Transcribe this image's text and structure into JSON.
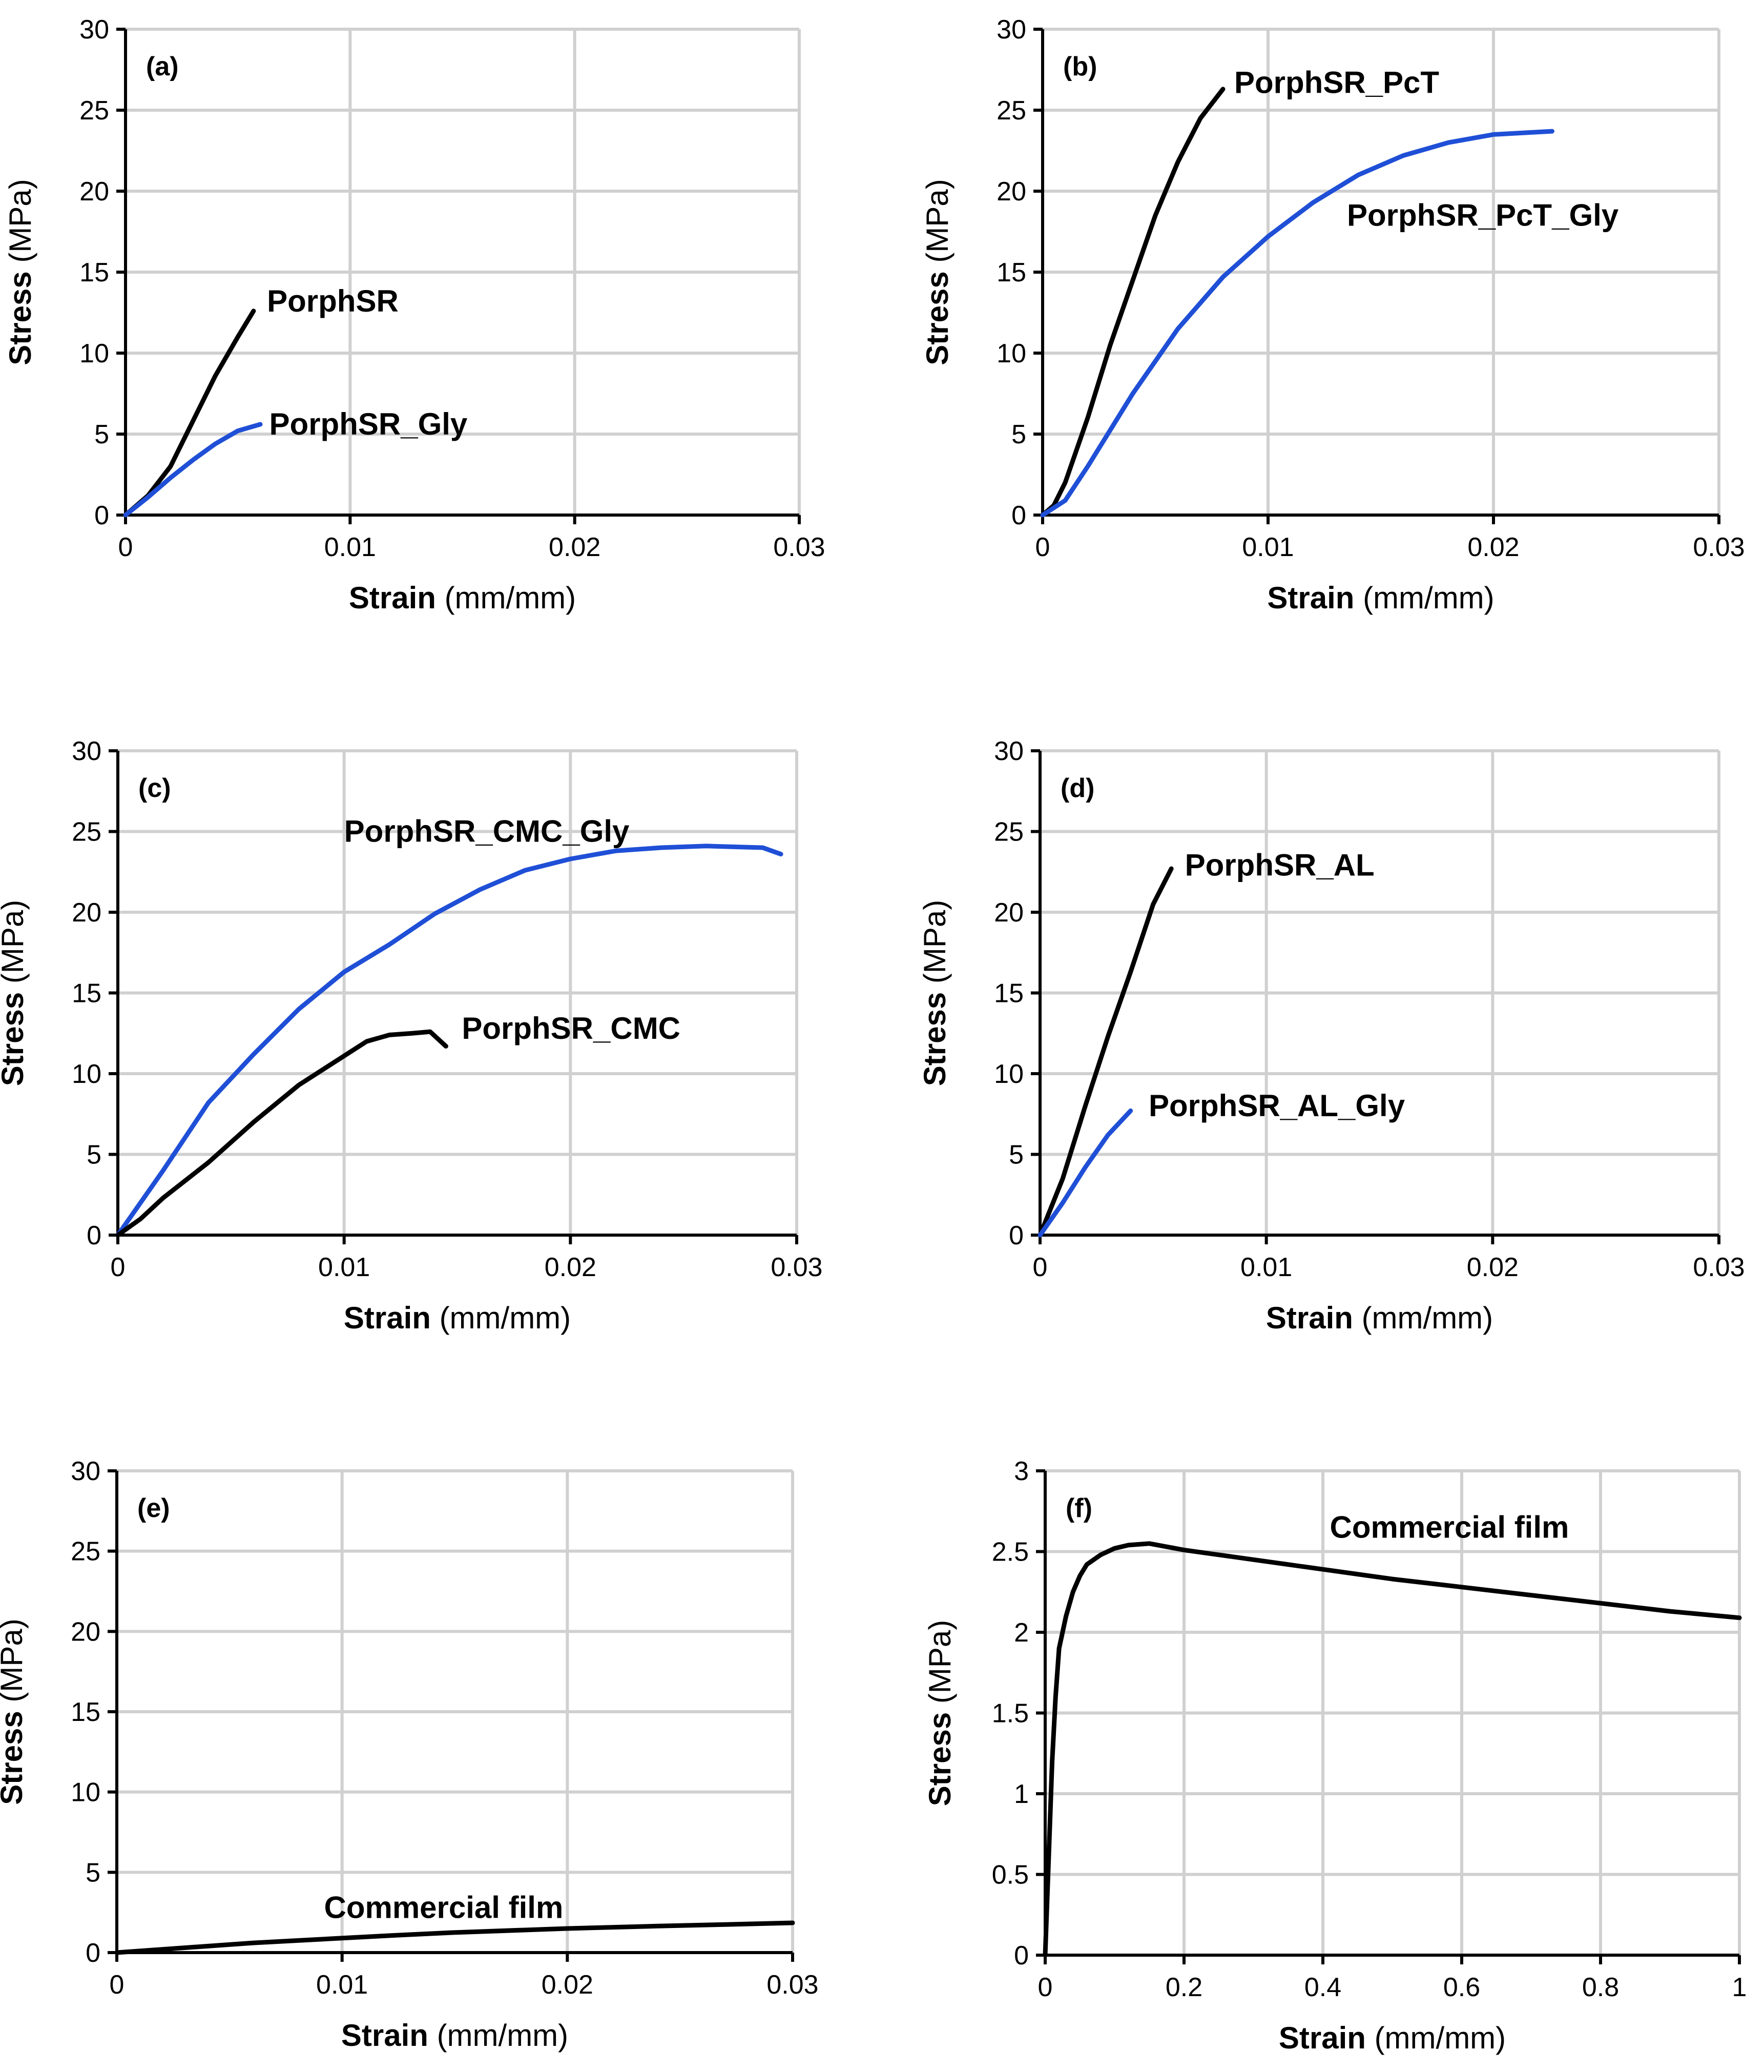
{
  "colors": {
    "black_series": "#000000",
    "blue_series": "#1f4fd6",
    "grid": "#d0d0d0"
  },
  "chart_data": [
    {
      "type": "line",
      "panel": "(a)",
      "xlabel_bold": "Strain",
      "xlabel_unit": " (mm/mm)",
      "ylabel_bold": "Stress",
      "ylabel_unit": " (MPa)",
      "xlim": [
        0,
        0.03
      ],
      "ylim": [
        0,
        30
      ],
      "xticks": [
        0,
        0.01,
        0.02,
        0.03
      ],
      "xtick_labels": [
        "0",
        "0.01",
        "0.02",
        "0.03"
      ],
      "yticks": [
        0,
        5,
        10,
        15,
        20,
        25,
        30
      ],
      "ytick_labels": [
        "0",
        "5",
        "10",
        "15",
        "20",
        "25",
        "30"
      ],
      "series": [
        {
          "name": "PorphSR",
          "color": "#000000",
          "x": [
            0,
            0.001,
            0.002,
            0.003,
            0.004,
            0.005,
            0.0057
          ],
          "y": [
            0,
            1.2,
            3.0,
            5.8,
            8.6,
            11.0,
            12.6
          ],
          "label_anchor": [
            0.0063,
            13.2
          ]
        },
        {
          "name": "PorphSR_Gly",
          "color": "#1f4fd6",
          "x": [
            0,
            0.001,
            0.002,
            0.003,
            0.004,
            0.005,
            0.006
          ],
          "y": [
            0,
            1.1,
            2.3,
            3.4,
            4.4,
            5.2,
            5.6
          ],
          "label_anchor": [
            0.0064,
            5.6
          ]
        }
      ]
    },
    {
      "type": "line",
      "panel": "(b)",
      "xlabel_bold": "Strain",
      "xlabel_unit": " (mm/mm)",
      "ylabel_bold": "Stress",
      "ylabel_unit": " (MPa)",
      "xlim": [
        0,
        0.03
      ],
      "ylim": [
        0,
        30
      ],
      "xticks": [
        0,
        0.01,
        0.02,
        0.03
      ],
      "xtick_labels": [
        "0",
        "0.01",
        "0.02",
        "0.03"
      ],
      "yticks": [
        0,
        5,
        10,
        15,
        20,
        25,
        30
      ],
      "ytick_labels": [
        "0",
        "5",
        "10",
        "15",
        "20",
        "25",
        "30"
      ],
      "series": [
        {
          "name": "PorphSR_PcT",
          "color": "#000000",
          "x": [
            0,
            0.0005,
            0.001,
            0.002,
            0.003,
            0.004,
            0.005,
            0.006,
            0.007,
            0.008
          ],
          "y": [
            0,
            0.6,
            2.0,
            6.0,
            10.5,
            14.5,
            18.5,
            21.8,
            24.5,
            26.3
          ],
          "label_anchor": [
            0.0085,
            26.7
          ]
        },
        {
          "name": "PorphSR_PcT_Gly",
          "color": "#1f4fd6",
          "x": [
            0,
            0.001,
            0.002,
            0.004,
            0.006,
            0.008,
            0.01,
            0.012,
            0.014,
            0.016,
            0.018,
            0.02,
            0.0226
          ],
          "y": [
            0,
            0.9,
            3.0,
            7.5,
            11.5,
            14.7,
            17.2,
            19.3,
            21.0,
            22.2,
            23.0,
            23.5,
            23.7
          ],
          "label_anchor": [
            0.0135,
            18.5
          ]
        }
      ]
    },
    {
      "type": "line",
      "panel": "(c)",
      "xlabel_bold": "Strain",
      "xlabel_unit": " (mm/mm)",
      "ylabel_bold": "Stress",
      "ylabel_unit": " (MPa)",
      "xlim": [
        0,
        0.03
      ],
      "ylim": [
        0,
        30
      ],
      "xticks": [
        0,
        0.01,
        0.02,
        0.03
      ],
      "xtick_labels": [
        "0",
        "0.01",
        "0.02",
        "0.03"
      ],
      "yticks": [
        0,
        5,
        10,
        15,
        20,
        25,
        30
      ],
      "ytick_labels": [
        "0",
        "5",
        "10",
        "15",
        "20",
        "25",
        "30"
      ],
      "series": [
        {
          "name": "PorphSR_CMC_Gly",
          "color": "#1f4fd6",
          "x": [
            0,
            0.002,
            0.004,
            0.006,
            0.008,
            0.01,
            0.012,
            0.014,
            0.016,
            0.018,
            0.02,
            0.022,
            0.024,
            0.026,
            0.0285,
            0.0293
          ],
          "y": [
            0,
            4.0,
            8.2,
            11.2,
            14.0,
            16.3,
            18.0,
            19.9,
            21.4,
            22.6,
            23.3,
            23.8,
            24.0,
            24.1,
            24.0,
            23.6
          ],
          "label_anchor": [
            0.01,
            25.0
          ]
        },
        {
          "name": "PorphSR_CMC",
          "color": "#000000",
          "x": [
            0,
            0.001,
            0.002,
            0.004,
            0.006,
            0.008,
            0.01,
            0.011,
            0.012,
            0.013,
            0.0138,
            0.0145
          ],
          "y": [
            0,
            1.0,
            2.3,
            4.5,
            7.0,
            9.3,
            11.1,
            12.0,
            12.4,
            12.5,
            12.6,
            11.7
          ],
          "label_anchor": [
            0.0152,
            12.8
          ]
        }
      ]
    },
    {
      "type": "line",
      "panel": "(d)",
      "xlabel_bold": "Strain",
      "xlabel_unit": " (mm/mm)",
      "ylabel_bold": "Stress",
      "ylabel_unit": " (MPa)",
      "xlim": [
        0,
        0.03
      ],
      "ylim": [
        0,
        30
      ],
      "xticks": [
        0,
        0.01,
        0.02,
        0.03
      ],
      "xtick_labels": [
        "0",
        "0.01",
        "0.02",
        "0.03"
      ],
      "yticks": [
        0,
        5,
        10,
        15,
        20,
        25,
        30
      ],
      "ytick_labels": [
        "0",
        "5",
        "10",
        "15",
        "20",
        "25",
        "30"
      ],
      "series": [
        {
          "name": "PorphSR_AL",
          "color": "#000000",
          "x": [
            0,
            0.001,
            0.002,
            0.003,
            0.004,
            0.005,
            0.0058
          ],
          "y": [
            0,
            3.5,
            8.0,
            12.3,
            16.3,
            20.5,
            22.7
          ],
          "label_anchor": [
            0.0064,
            22.9
          ]
        },
        {
          "name": "PorphSR_AL_Gly",
          "color": "#1f4fd6",
          "x": [
            0,
            0.001,
            0.002,
            0.003,
            0.004
          ],
          "y": [
            0,
            2.0,
            4.2,
            6.2,
            7.7
          ],
          "label_anchor": [
            0.0048,
            8.0
          ]
        }
      ]
    },
    {
      "type": "line",
      "panel": "(e)",
      "xlabel_bold": "Strain",
      "xlabel_unit": " (mm/mm)",
      "ylabel_bold": "Stress",
      "ylabel_unit": " (MPa)",
      "xlim": [
        0,
        0.03
      ],
      "ylim": [
        0,
        30
      ],
      "xticks": [
        0,
        0.01,
        0.02,
        0.03
      ],
      "xtick_labels": [
        "0",
        "0.01",
        "0.02",
        "0.03"
      ],
      "yticks": [
        0,
        5,
        10,
        15,
        20,
        25,
        30
      ],
      "ytick_labels": [
        "0",
        "5",
        "10",
        "15",
        "20",
        "25",
        "30"
      ],
      "series": [
        {
          "name": "Commercial film",
          "color": "#000000",
          "x": [
            0,
            0.002,
            0.004,
            0.006,
            0.008,
            0.01,
            0.012,
            0.015,
            0.018,
            0.02,
            0.024,
            0.027,
            0.03
          ],
          "y": [
            0,
            0.2,
            0.4,
            0.6,
            0.75,
            0.9,
            1.05,
            1.25,
            1.4,
            1.5,
            1.65,
            1.75,
            1.85
          ],
          "label_anchor": [
            0.0092,
            2.8
          ]
        }
      ]
    },
    {
      "type": "line",
      "panel": "(f)",
      "xlabel_bold": "Strain",
      "xlabel_unit": " (mm/mm)",
      "ylabel_bold": "Stress",
      "ylabel_unit": " (MPa)",
      "xlim": [
        0,
        1
      ],
      "ylim": [
        0,
        3
      ],
      "xticks": [
        0,
        0.2,
        0.4,
        0.6,
        0.8,
        1
      ],
      "xtick_labels": [
        "0",
        "0.2",
        "0.4",
        "0.6",
        "0.8",
        "1"
      ],
      "yticks": [
        0,
        0.5,
        1,
        1.5,
        2,
        2.5,
        3
      ],
      "ytick_labels": [
        "0",
        "0.5",
        "1",
        "1.5",
        "2",
        "2.5",
        "3"
      ],
      "series": [
        {
          "name": "Commercial film",
          "color": "#000000",
          "x": [
            0,
            0.005,
            0.01,
            0.015,
            0.02,
            0.03,
            0.04,
            0.05,
            0.06,
            0.08,
            0.1,
            0.12,
            0.15,
            0.2,
            0.3,
            0.4,
            0.5,
            0.6,
            0.7,
            0.8,
            0.9,
            1.0
          ],
          "y": [
            0,
            0.6,
            1.2,
            1.6,
            1.9,
            2.1,
            2.25,
            2.35,
            2.42,
            2.48,
            2.52,
            2.54,
            2.55,
            2.51,
            2.45,
            2.39,
            2.33,
            2.28,
            2.23,
            2.18,
            2.13,
            2.09
          ],
          "label_anchor": [
            0.41,
            2.65
          ]
        }
      ]
    }
  ]
}
